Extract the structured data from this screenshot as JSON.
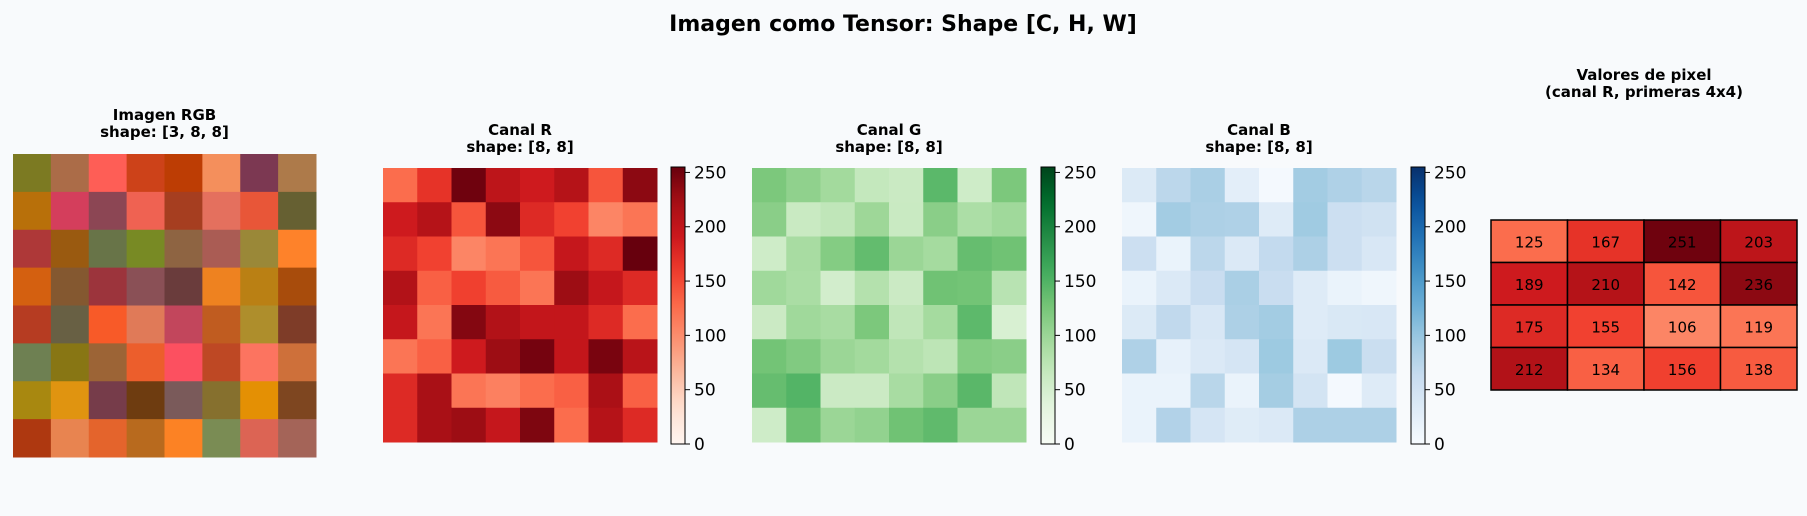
{
  "figure": {
    "title": "Imagen como Tensor: Shape [C, H, W]"
  },
  "chart_data": [
    {
      "type": "heatmap",
      "title": "Imagen RGB",
      "subtitle": "shape: [3, 8, 8]",
      "channels": [
        "R",
        "G",
        "B"
      ],
      "rows": [
        [
          "#7c7a22",
          "#ab6c48",
          "#fe5e56",
          "#cd4219",
          "#bd3d04",
          "#f48f5c",
          "#7c3852",
          "#ad7a4a"
        ],
        [
          "#b8700a",
          "#d43e5c",
          "#8c4654",
          "#ef6252",
          "#a63e20",
          "#e4705e",
          "#e85638",
          "#666032"
        ],
        [
          "#ae3838",
          "#9a5a10",
          "#687448",
          "#788a24",
          "#8e6442",
          "#aa5c54",
          "#9a8838",
          "#fe822a"
        ],
        [
          "#d46010",
          "#845830",
          "#9c343c",
          "#8a5056",
          "#6a3c3c",
          "#ee8220",
          "#ba8014",
          "#a84c0c"
        ],
        [
          "#b63c22",
          "#686044",
          "#f85a28",
          "#e07a58",
          "#c2465c",
          "#c05c20",
          "#ae8e2c",
          "#7e3c28"
        ],
        [
          "#6e8052",
          "#887614",
          "#9c6436",
          "#ec5e2c",
          "#fc5060",
          "#be4824",
          "#fc7460",
          "#ce703a"
        ],
        [
          "#a88810",
          "#e09410",
          "#763c4a",
          "#6e3c10",
          "#7a5a5a",
          "#86702e",
          "#e49004",
          "#7e4620"
        ],
        [
          "#ae3810",
          "#e88450",
          "#e4642c",
          "#b86a1e",
          "#fc8224",
          "#7a8c54",
          "#dc6454",
          "#a46458"
        ]
      ]
    },
    {
      "type": "heatmap",
      "title": "Canal R",
      "subtitle": "shape: [8, 8]",
      "colormap": "Reds",
      "vmin": 0,
      "vmax": 255,
      "colorbar_ticks": [
        0,
        50,
        100,
        150,
        200,
        250
      ],
      "values": [
        [
          125,
          167,
          251,
          203,
          189,
          210,
          142,
          236
        ],
        [
          189,
          210,
          142,
          236,
          175,
          155,
          106,
          119
        ],
        [
          175,
          155,
          106,
          119,
          142,
          196,
          175,
          255
        ],
        [
          212,
          134,
          156,
          138,
          119,
          227,
          196,
          175
        ],
        [
          196,
          119,
          240,
          212,
          198,
          198,
          175,
          125
        ],
        [
          119,
          134,
          189,
          227,
          248,
          198,
          246,
          206
        ],
        [
          175,
          220,
          119,
          110,
          125,
          134,
          218,
          134
        ],
        [
          175,
          220,
          227,
          196,
          243,
          125,
          210,
          175
        ]
      ]
    },
    {
      "type": "heatmap",
      "title": "Canal G",
      "subtitle": "shape: [8, 8]",
      "colormap": "Greens",
      "vmin": 0,
      "vmax": 255,
      "colorbar_ticks": [
        0,
        50,
        100,
        150,
        200,
        250
      ],
      "values": [
        [
          122,
          108,
          94,
          66,
          61,
          143,
          56,
          122
        ],
        [
          112,
          62,
          70,
          98,
          62,
          112,
          86,
          96
        ],
        [
          56,
          90,
          116,
          138,
          100,
          92,
          136,
          130
        ],
        [
          96,
          88,
          52,
          80,
          60,
          130,
          128,
          76
        ],
        [
          60,
          96,
          90,
          122,
          70,
          92,
          142,
          46
        ],
        [
          128,
          118,
          100,
          94,
          80,
          72,
          116,
          112
        ],
        [
          136,
          148,
          60,
          60,
          90,
          112,
          144,
          70
        ],
        [
          56,
          132,
          100,
          106,
          130,
          140,
          100,
          100
        ]
      ]
    },
    {
      "type": "heatmap",
      "title": "Canal B",
      "subtitle": "shape: [8, 8]",
      "colormap": "Blues",
      "vmin": 0,
      "vmax": 255,
      "colorbar_ticks": [
        0,
        50,
        100,
        150,
        200,
        250
      ],
      "values": [
        [
          34,
          72,
          86,
          25,
          4,
          92,
          82,
          74
        ],
        [
          10,
          92,
          84,
          82,
          32,
          94,
          56,
          50
        ],
        [
          56,
          16,
          72,
          36,
          66,
          84,
          56,
          40
        ],
        [
          16,
          36,
          60,
          86,
          60,
          32,
          16,
          10
        ],
        [
          34,
          68,
          40,
          84,
          92,
          32,
          38,
          40
        ],
        [
          82,
          20,
          36,
          44,
          96,
          36,
          96,
          58
        ],
        [
          16,
          16,
          74,
          16,
          90,
          46,
          4,
          32
        ],
        [
          16,
          80,
          44,
          30,
          36,
          84,
          84,
          84
        ]
      ]
    },
    {
      "type": "table",
      "title": "Valores de pixel",
      "subtitle": "(canal R, primeras 4x4)",
      "colormap": "Reds",
      "vmin": 0,
      "vmax": 255,
      "values": [
        [
          125,
          167,
          251,
          203
        ],
        [
          189,
          210,
          142,
          236
        ],
        [
          175,
          155,
          106,
          119
        ],
        [
          212,
          134,
          156,
          138
        ]
      ]
    }
  ]
}
